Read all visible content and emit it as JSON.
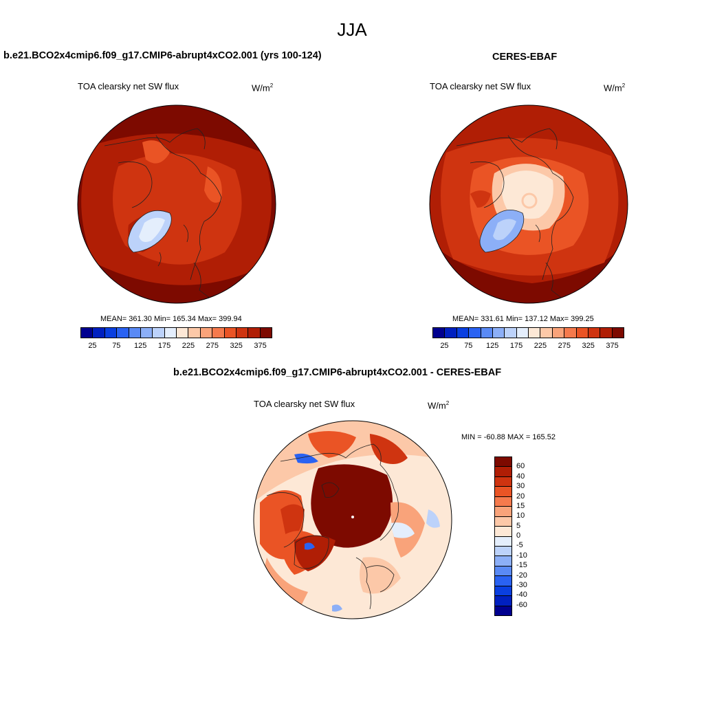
{
  "main_title": "JJA",
  "panels": {
    "model": {
      "title": "b.e21.BCO2x4cmip6.f09_g17.CMIP6-abrupt4xCO2.001 (yrs 100-124)",
      "variable": "TOA clearsky net SW flux",
      "units": "W/m",
      "units_sup": "2",
      "stats": "MEAN= 361.30  Min= 165.34  Max= 399.94"
    },
    "obs": {
      "title": "CERES-EBAF",
      "variable": "TOA clearsky net SW flux",
      "units": "W/m",
      "units_sup": "2",
      "stats": "MEAN= 331.61  Min= 137.12  Max= 399.25"
    },
    "diff": {
      "title": "b.e21.BCO2x4cmip6.f09_g17.CMIP6-abrupt4xCO2.001 - CERES-EBAF",
      "variable": "TOA clearsky net SW flux",
      "units": "W/m",
      "units_sup": "2",
      "minmax": "MIN = -60.88 MAX = 165.52"
    }
  },
  "colorbar_abs": {
    "ticks": [
      "25",
      "75",
      "125",
      "175",
      "225",
      "275",
      "325",
      "375"
    ],
    "colors": [
      "#00008f",
      "#0020c0",
      "#0a3fe0",
      "#2a62f2",
      "#5a8af5",
      "#8caff7",
      "#bcd2fa",
      "#e4eefc",
      "#fde8d6",
      "#fcc8a8",
      "#f9a37a",
      "#f57a4d",
      "#ea5425",
      "#cf3410",
      "#b01e05",
      "#7d0a00"
    ]
  },
  "colorbar_diff": {
    "labels": [
      "60",
      "40",
      "30",
      "20",
      "15",
      "10",
      "5",
      "0",
      "-5",
      "-10",
      "-15",
      "-20",
      "-30",
      "-40",
      "-60"
    ],
    "colors": [
      "#7d0a00",
      "#b01e05",
      "#cf3410",
      "#ea5425",
      "#f57a4d",
      "#f9a37a",
      "#fcc8a8",
      "#fde8d6",
      "#e4eefc",
      "#bcd2fa",
      "#8caff7",
      "#5a8af5",
      "#2a62f2",
      "#0a3fe0",
      "#0020c0",
      "#00008f"
    ]
  },
  "colors": {
    "dark_red": "#b01e05",
    "deep_red": "#7d0a00",
    "mid_red": "#cf3410",
    "orange_red": "#ea5425",
    "light_peach": "#fde8d6",
    "pale_peach": "#fcc8a8",
    "light_blue": "#bcd2fa",
    "blue": "#8caff7",
    "deep_blue": "#2a62f2",
    "coast": "#222222"
  }
}
